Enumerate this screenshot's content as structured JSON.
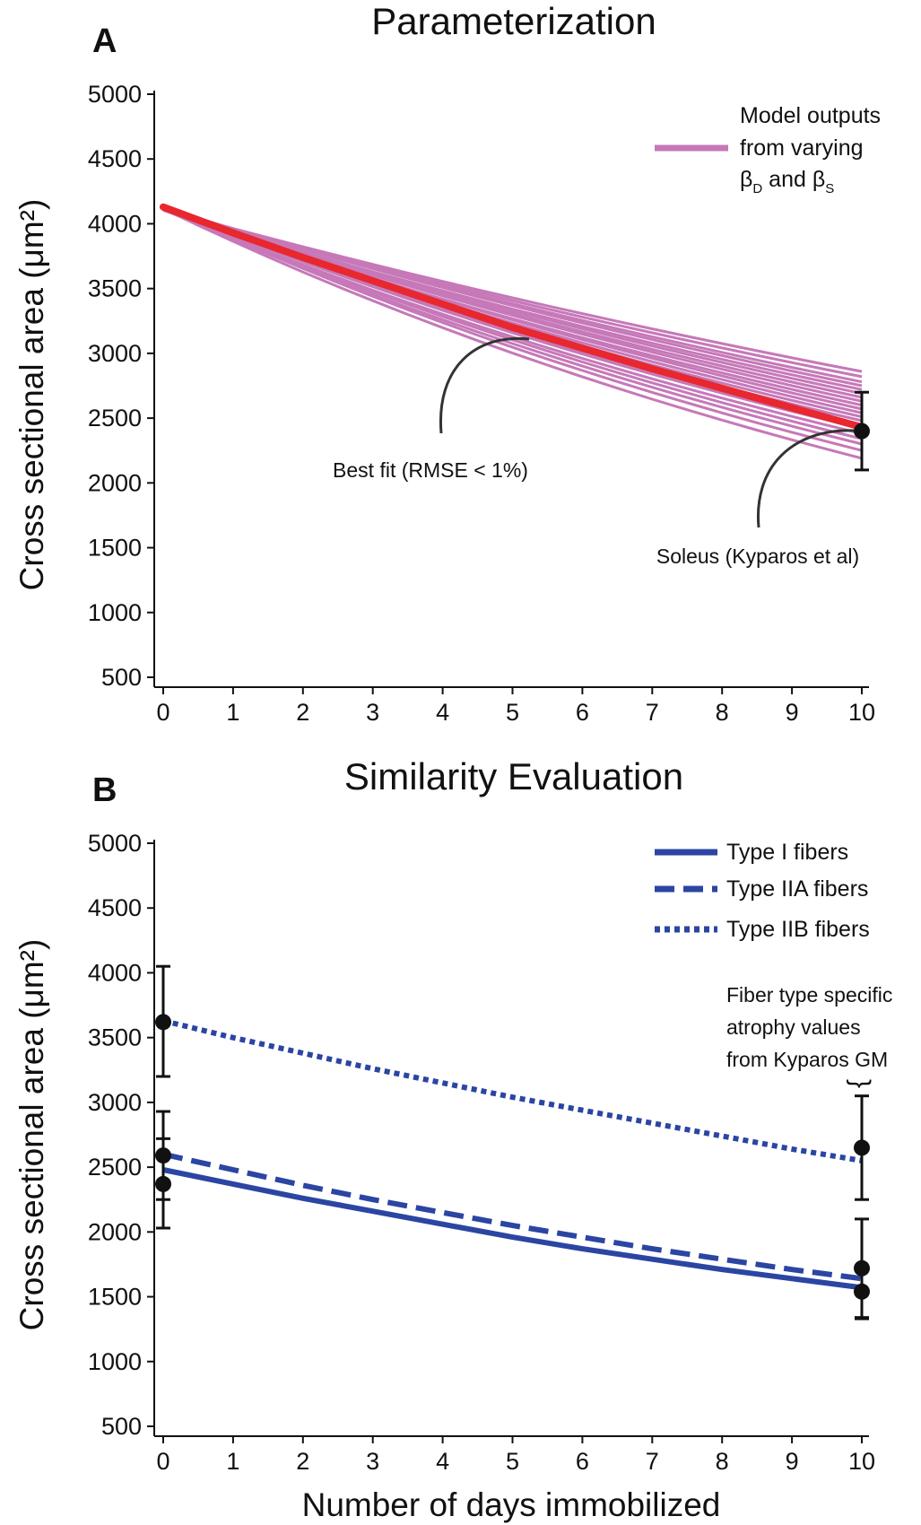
{
  "chart_data": [
    {
      "panel_label": "A",
      "title": "Parameterization",
      "type": "line",
      "ylabel": "Cross sectional area (μm²)",
      "xlabel": "",
      "xlim": [
        0,
        10
      ],
      "ylim": [
        500,
        5000
      ],
      "x_ticks": [
        "0",
        "1",
        "2",
        "3",
        "4",
        "5",
        "6",
        "7",
        "8",
        "9",
        "10"
      ],
      "y_ticks": [
        "5000",
        "4500",
        "4000",
        "3500",
        "3000",
        "2500",
        "2000",
        "1500",
        "1000",
        "500"
      ],
      "grid": false,
      "legend_position": "top-right",
      "legend": {
        "lines": [
          "Model outputs",
          "from varying"
        ],
        "line3_beta": "β",
        "line3_d": "D",
        "line3_and": " and β",
        "line3_s": "S",
        "color": "#c678b8"
      },
      "model_outputs": {
        "color": "#c678b8",
        "x": [
          0,
          10
        ],
        "start_values": [
          4110,
          4115,
          4120,
          4125,
          4108,
          4118,
          4112,
          4122,
          4105,
          4128,
          4116,
          4110,
          4120,
          4114,
          4124,
          4108,
          4118,
          4112,
          4126,
          4116
        ],
        "end_values": [
          2860,
          2820,
          2780,
          2750,
          2720,
          2690,
          2660,
          2630,
          2600,
          2570,
          2540,
          2510,
          2480,
          2450,
          2420,
          2380,
          2340,
          2300,
          2250,
          2190
        ]
      },
      "best_fit": {
        "color": "#e8272e",
        "x": [
          0,
          1,
          2,
          3,
          4,
          5,
          6,
          7,
          8,
          9,
          10
        ],
        "y": [
          4130,
          3930,
          3740,
          3560,
          3380,
          3200,
          3040,
          2880,
          2730,
          2580,
          2430
        ]
      },
      "observed": {
        "name": "Soleus (Kyparos et al)",
        "x": 10,
        "y": 2400,
        "err_low": 2100,
        "err_high": 2700
      },
      "annotations": {
        "best_fit": "Best fit (RMSE < 1%)",
        "soleus": "Soleus (Kyparos et al)"
      }
    },
    {
      "panel_label": "B",
      "title": "Similarity Evaluation",
      "type": "line",
      "ylabel": "Cross sectional area (μm²)",
      "xlabel": "Number of days immobilized",
      "xlim": [
        0,
        10
      ],
      "ylim": [
        500,
        5000
      ],
      "x_ticks": [
        "0",
        "1",
        "2",
        "3",
        "4",
        "5",
        "6",
        "7",
        "8",
        "9",
        "10"
      ],
      "y_ticks": [
        "5000",
        "4500",
        "4000",
        "3500",
        "3000",
        "2500",
        "2000",
        "1500",
        "1000",
        "500"
      ],
      "grid": false,
      "legend_position": "top-right",
      "color": "#2b45a3",
      "series": [
        {
          "name": "Type I fibers",
          "style": "solid",
          "x": [
            0,
            1,
            2,
            3,
            4,
            5,
            6,
            7,
            8,
            9,
            10
          ],
          "y": [
            2480,
            2370,
            2260,
            2160,
            2060,
            1960,
            1870,
            1790,
            1710,
            1640,
            1570
          ]
        },
        {
          "name": "Type IIA fibers",
          "style": "dashed",
          "x": [
            0,
            1,
            2,
            3,
            4,
            5,
            6,
            7,
            8,
            9,
            10
          ],
          "y": [
            2600,
            2480,
            2360,
            2250,
            2150,
            2050,
            1960,
            1870,
            1790,
            1710,
            1640
          ]
        },
        {
          "name": "Type IIB fibers",
          "style": "dotted",
          "x": [
            0,
            1,
            2,
            3,
            4,
            5,
            6,
            7,
            8,
            9,
            10
          ],
          "y": [
            3630,
            3500,
            3380,
            3260,
            3150,
            3040,
            2940,
            2840,
            2740,
            2640,
            2550
          ]
        }
      ],
      "observed": [
        {
          "x": 0,
          "y": 3620,
          "err_low": 3200,
          "err_high": 4050
        },
        {
          "x": 0,
          "y": 2590,
          "err_low": 2250,
          "err_high": 2930
        },
        {
          "x": 0,
          "y": 2370,
          "err_low": 2030,
          "err_high": 2720
        },
        {
          "x": 10,
          "y": 2650,
          "err_low": 2250,
          "err_high": 3050
        },
        {
          "x": 10,
          "y": 1720,
          "err_low": 1330,
          "err_high": 2100
        },
        {
          "x": 10,
          "y": 1540,
          "err_low": 1340,
          "err_high": 1720
        }
      ],
      "annotation_lines": [
        "Fiber type specific",
        "atrophy values",
        "from Kyparos GM"
      ],
      "annotation_brace": "}"
    }
  ]
}
